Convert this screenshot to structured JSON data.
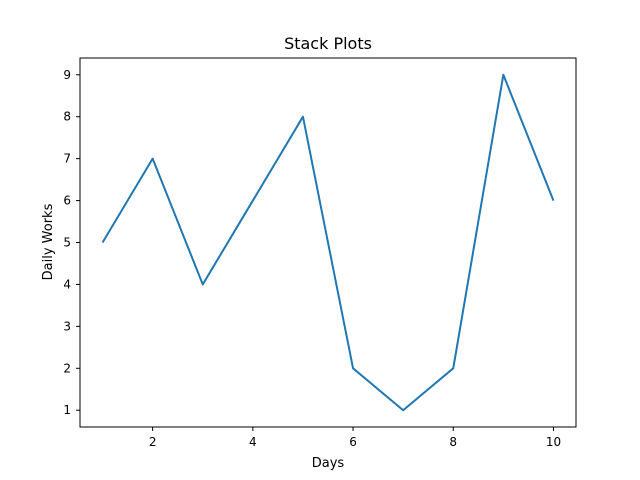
{
  "chart_data": {
    "type": "line",
    "title": "Stack Plots",
    "xlabel": "Days",
    "ylabel": "Daily Works",
    "x": [
      1,
      2,
      3,
      4,
      5,
      6,
      7,
      8,
      9,
      10
    ],
    "series": [
      {
        "values": [
          5,
          7,
          4,
          6,
          8,
          2,
          1,
          2,
          9,
          6
        ],
        "color": "#1f77b4"
      }
    ],
    "xlim": [
      0.55,
      10.45
    ],
    "ylim": [
      0.6,
      9.4
    ],
    "xticks": [
      2,
      4,
      6,
      8,
      10
    ],
    "yticks": [
      1,
      2,
      3,
      4,
      5,
      6,
      7,
      8,
      9
    ],
    "grid": false,
    "legend": false
  }
}
